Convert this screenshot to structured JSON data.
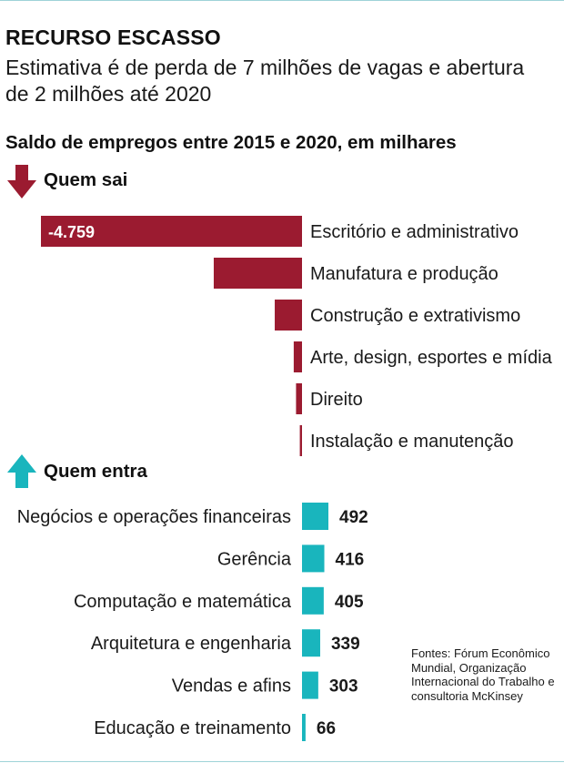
{
  "header": {
    "title": "RECURSO ESCASSO",
    "subtitle": "Estimativa é de perda de 7 milhões de vagas e abertura de 2 milhões até 2020"
  },
  "sections": {
    "losers_label": "Quem sai",
    "gainers_label": "Quem entra"
  },
  "sources": "Fontes: Fórum Econômico Mundial, Organização Internacional do Trabalho e consultoria McKinsey",
  "colors": {
    "negative": "#9b1b30",
    "positive": "#19b5bd"
  },
  "chart_data": {
    "type": "bar",
    "title": "Saldo de empregos entre 2015 e 2020, em milhares",
    "series": [
      {
        "name": "Quem sai",
        "categories": [
          "Escritório e administrativo",
          "Manufatura e produção",
          "Construção e extrativismo",
          "Arte, design, esportes e mídia",
          "Direito",
          "Instalação e manutenção"
        ],
        "values": [
          -4759,
          -1609,
          -497,
          -151,
          -109,
          -40
        ],
        "value_labels": [
          "-4.759",
          "",
          "",
          "",
          "",
          ""
        ]
      },
      {
        "name": "Quem entra",
        "categories": [
          "Negócios e operações financeiras",
          "Gerência",
          "Computação e matemática",
          "Arquitetura e engenharia",
          "Vendas e afins",
          "Educação e treinamento"
        ],
        "values": [
          492,
          416,
          405,
          339,
          303,
          66
        ],
        "value_labels": [
          "492",
          "416",
          "405",
          "339",
          "303",
          "66"
        ]
      }
    ]
  }
}
